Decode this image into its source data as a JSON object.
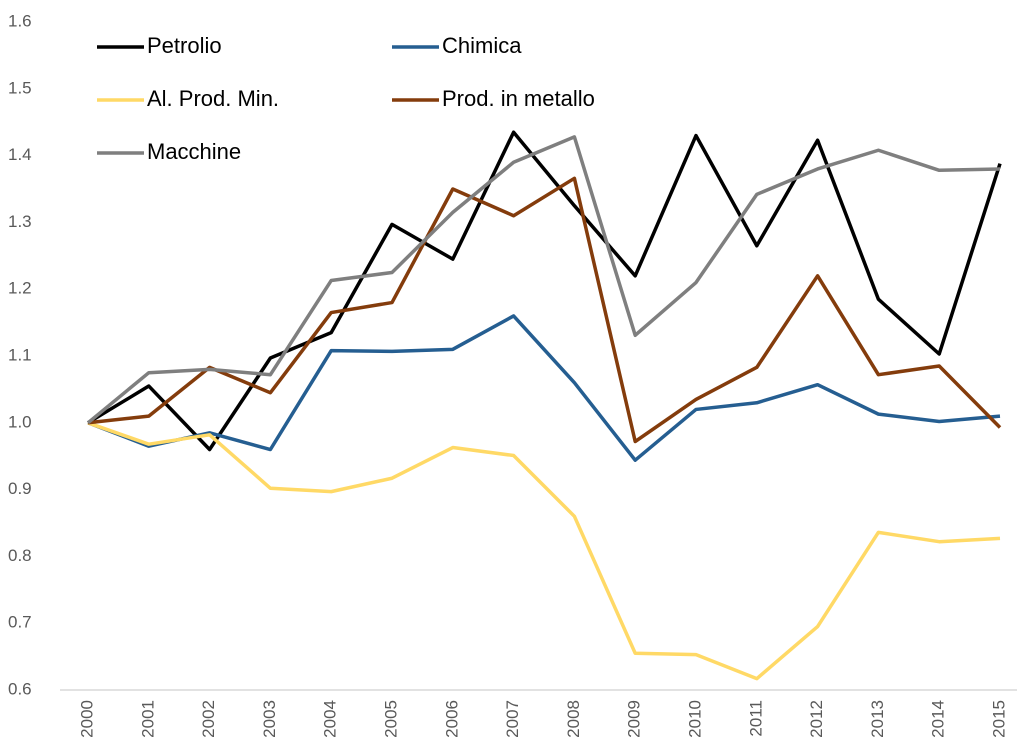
{
  "chart_data": {
    "type": "line",
    "categories": [
      "2000",
      "2001",
      "2002",
      "2003",
      "2004",
      "2005",
      "2006",
      "2007",
      "2008",
      "2009",
      "2010",
      "2011",
      "2012",
      "2013",
      "2014",
      "2015"
    ],
    "series": [
      {
        "name": "Petrolio",
        "color": "#000000",
        "values": [
          1.0,
          1.055,
          0.96,
          1.097,
          1.135,
          1.297,
          1.245,
          1.435,
          1.325,
          1.22,
          1.43,
          1.265,
          1.423,
          1.185,
          1.103,
          1.388
        ]
      },
      {
        "name": "Chimica",
        "color": "#255e91",
        "values": [
          1.0,
          0.965,
          0.985,
          0.96,
          1.108,
          1.107,
          1.11,
          1.16,
          1.06,
          0.944,
          1.02,
          1.03,
          1.057,
          1.013,
          1.002,
          1.01
        ]
      },
      {
        "name": "Al. Prod. Min.",
        "color": "#ffd966",
        "values": [
          1.0,
          0.968,
          0.982,
          0.902,
          0.897,
          0.917,
          0.963,
          0.951,
          0.86,
          0.655,
          0.653,
          0.617,
          0.695,
          0.836,
          0.822,
          0.827
        ]
      },
      {
        "name": "Prod. in metallo",
        "color": "#843c0c",
        "values": [
          1.0,
          1.01,
          1.083,
          1.045,
          1.165,
          1.18,
          1.35,
          1.31,
          1.366,
          0.972,
          1.035,
          1.083,
          1.22,
          1.072,
          1.085,
          0.993
        ]
      },
      {
        "name": "Macchine",
        "color": "#7f7f7f",
        "values": [
          1.0,
          1.075,
          1.08,
          1.072,
          1.213,
          1.225,
          1.315,
          1.39,
          1.428,
          1.131,
          1.21,
          1.342,
          1.38,
          1.408,
          1.378,
          1.38
        ]
      }
    ],
    "ylim": [
      0.6,
      1.6
    ],
    "yticks": [
      0.6,
      0.7,
      0.8,
      0.9,
      {
        "value": 1,
        "label": "1.0"
      },
      1.1,
      1.2,
      1.3,
      1.4,
      1.5,
      1.6
    ],
    "grid": false,
    "legend": "upper left"
  }
}
